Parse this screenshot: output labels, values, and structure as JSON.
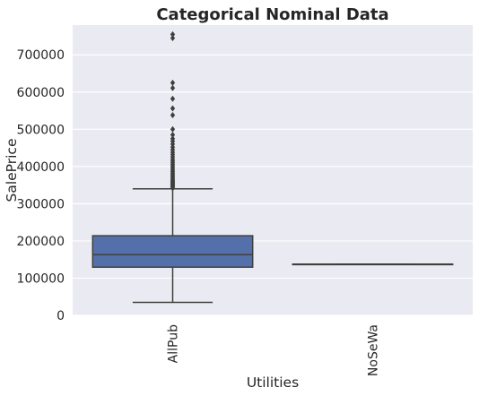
{
  "chart_data": {
    "type": "box",
    "title": "Categorical Nominal Data",
    "xlabel": "Utilities",
    "ylabel": "SalePrice",
    "ylim": [
      0,
      780000
    ],
    "yticks": [
      0,
      100000,
      200000,
      300000,
      400000,
      500000,
      600000,
      700000
    ],
    "ytick_labels": [
      "0",
      "100000",
      "200000",
      "300000",
      "400000",
      "500000",
      "600000",
      "700000"
    ],
    "grid": true,
    "categories": [
      "AllPub",
      "NoSeWa"
    ],
    "boxes": [
      {
        "category": "AllPub",
        "whisker_low": 34900,
        "q1": 129500,
        "median": 163000,
        "q3": 214000,
        "whisker_high": 340000,
        "outliers": [
          342000,
          345000,
          348000,
          350000,
          352000,
          355000,
          358000,
          360000,
          363000,
          366000,
          370000,
          374000,
          378000,
          382000,
          386000,
          390000,
          395000,
          400000,
          405000,
          410000,
          415000,
          420000,
          426000,
          432000,
          438000,
          445000,
          452000,
          460000,
          468000,
          475000,
          485000,
          500000,
          538000,
          556000,
          582000,
          611000,
          625000,
          745000,
          755000
        ],
        "color": "#5470aa"
      },
      {
        "category": "NoSeWa",
        "whisker_low": 137500,
        "q1": 137500,
        "median": 137500,
        "q3": 137500,
        "whisker_high": 137500,
        "outliers": [],
        "color": "#dd8452"
      }
    ]
  }
}
